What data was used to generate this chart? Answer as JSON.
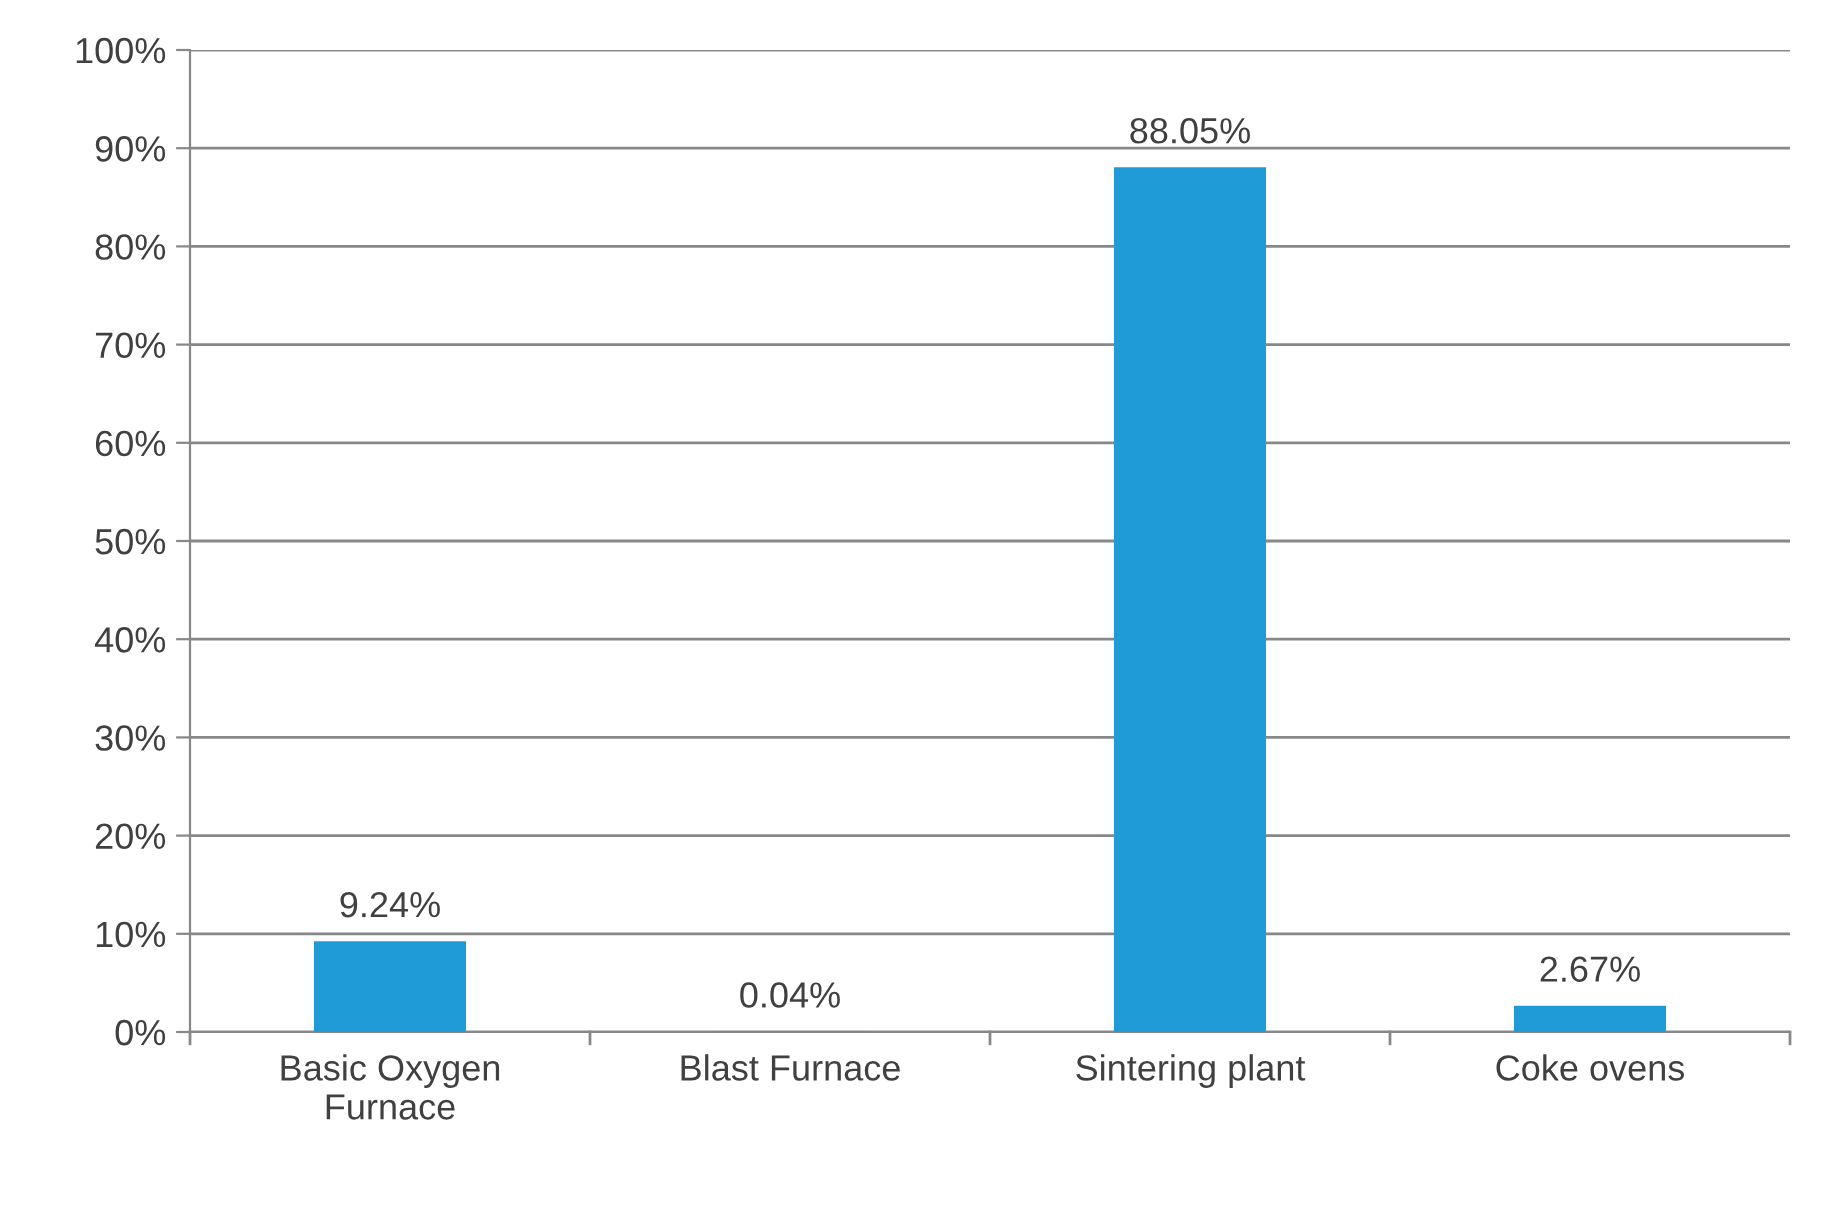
{
  "chart_data": {
    "type": "bar",
    "categories": [
      "Basic Oxygen\nFurnace",
      "Blast Furnace",
      "Sintering plant",
      "Coke ovens"
    ],
    "values": [
      9.24,
      0.04,
      88.05,
      2.67
    ],
    "color": "#1f9bd7",
    "value_labels": [
      "9.24%",
      "0.04%",
      "88.05%",
      "2.67%"
    ],
    "ylim": [
      0,
      100
    ],
    "yticks": [
      {
        "value": 0,
        "label": "0%"
      },
      {
        "value": 10,
        "label": "10%"
      },
      {
        "value": 20,
        "label": "20%"
      },
      {
        "value": 30,
        "label": "30%"
      },
      {
        "value": 40,
        "label": "40%"
      },
      {
        "value": 50,
        "label": "50%"
      },
      {
        "value": 60,
        "label": "60%"
      },
      {
        "value": 70,
        "label": "70%"
      },
      {
        "value": 80,
        "label": "80%"
      },
      {
        "value": 90,
        "label": "90%"
      },
      {
        "value": 100,
        "label": "100%"
      }
    ],
    "grid": "y",
    "legend": false
  }
}
